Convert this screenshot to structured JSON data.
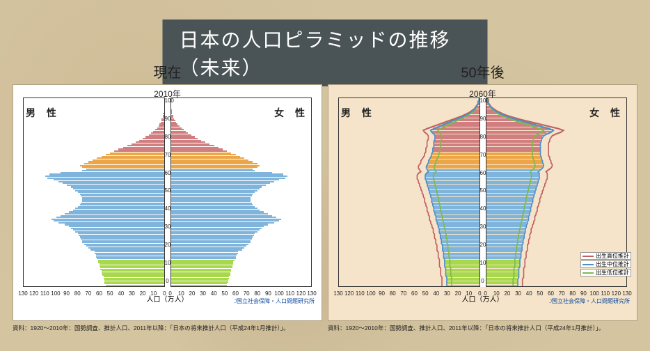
{
  "title": "日本の人口ピラミッドの推移（未来）",
  "background_color": "#d4c4a0",
  "title_bg": "#4a5355",
  "title_color": "#ffffff",
  "title_fontsize": 28,
  "panels": [
    {
      "key": "now",
      "heading": "現在",
      "year": "2010年",
      "plot_bg": "#ffffff",
      "gender_male": "男 性",
      "gender_female": "女 性",
      "xlabel": "人口（万人）",
      "logo_text": "国立社会保障・人口問題研究所",
      "footnote": "資料：1920～2010年：国勢調査、推計人口、2011年以降：「日本の将来推計人口（平成24年1月推計）」。"
    },
    {
      "key": "future",
      "heading": "50年後",
      "year": "2060年",
      "plot_bg": "#f5e4c9",
      "gender_male": "男 性",
      "gender_female": "女 性",
      "xlabel": "人口（万人）",
      "logo_text": "国立社会保障・人口問題研究所",
      "footnote": "資料：1920～2010年：国勢調査、推計人口、2011年以降：「日本の将来推計人口（平成24年1月推計）」。"
    }
  ],
  "y_axis": {
    "min": 0,
    "max": 105,
    "tick_step": 10
  },
  "x_axis": {
    "max": 130,
    "ticks": [
      130,
      120,
      110,
      100,
      90,
      80,
      70,
      60,
      50,
      40,
      30,
      20,
      10,
      0
    ]
  },
  "age_band_colors": {
    "youth": {
      "range": [
        0,
        14
      ],
      "fill": "linear-gradient(to top,#9dd140,#c9e97a)",
      "solid": "#a8d84b"
    },
    "working": {
      "range": [
        15,
        64
      ],
      "fill": "linear-gradient(to top,#6aa8d8,#b7d6ee)",
      "solid": "#7fb4dd"
    },
    "senior1": {
      "range": [
        65,
        74
      ],
      "fill": "linear-gradient(to top,#e89a3a,#f4c276)",
      "solid": "#eda647"
    },
    "senior2": {
      "range": [
        75,
        110
      ],
      "fill": "linear-gradient(to top,#c86b6d,#e9aeb1)",
      "solid": "#d17e80"
    }
  },
  "legend_variants": [
    {
      "label": "出生高位推計",
      "color": "#c06060"
    },
    {
      "label": "出生中位推計",
      "color": "#4f8fc9"
    },
    {
      "label": "出生低位推計",
      "color": "#7dbb4a"
    }
  ],
  "data_2010": {
    "male": [
      54,
      55,
      55,
      55,
      56,
      56,
      57,
      58,
      58,
      59,
      59,
      60,
      60,
      61,
      61,
      62,
      63,
      63,
      64,
      64,
      68,
      70,
      72,
      74,
      76,
      76,
      77,
      78,
      79,
      80,
      82,
      84,
      86,
      88,
      92,
      98,
      102,
      104,
      100,
      96,
      92,
      88,
      84,
      82,
      80,
      78,
      77,
      76,
      76,
      76,
      77,
      78,
      80,
      82,
      84,
      86,
      90,
      94,
      98,
      102,
      108,
      110,
      106,
      96,
      76,
      72,
      76,
      78,
      74,
      70,
      66,
      62,
      58,
      54,
      50,
      46,
      42,
      38,
      34,
      30,
      26,
      23,
      20,
      17,
      14,
      12,
      10,
      8,
      6,
      5,
      4,
      3,
      2,
      2,
      1,
      1,
      1,
      0,
      0,
      0,
      0,
      0,
      0,
      0,
      0,
      0
    ],
    "female": [
      52,
      52,
      53,
      53,
      54,
      54,
      55,
      55,
      56,
      56,
      57,
      57,
      58,
      58,
      59,
      60,
      60,
      61,
      62,
      62,
      66,
      68,
      70,
      72,
      74,
      74,
      75,
      76,
      77,
      78,
      80,
      82,
      84,
      86,
      90,
      96,
      100,
      102,
      98,
      94,
      90,
      86,
      82,
      80,
      78,
      76,
      75,
      74,
      74,
      74,
      75,
      76,
      78,
      80,
      82,
      84,
      88,
      92,
      96,
      100,
      106,
      108,
      104,
      94,
      78,
      76,
      80,
      82,
      80,
      76,
      72,
      68,
      64,
      60,
      56,
      52,
      48,
      44,
      40,
      36,
      32,
      28,
      25,
      22,
      19,
      16,
      14,
      12,
      10,
      8,
      6,
      5,
      4,
      3,
      2,
      2,
      1,
      1,
      1,
      0,
      0,
      0,
      0,
      0,
      0,
      0
    ]
  },
  "data_2060": {
    "male": [
      30,
      30,
      30,
      30,
      30,
      30,
      31,
      31,
      31,
      31,
      31,
      32,
      32,
      32,
      32,
      32,
      33,
      33,
      33,
      33,
      34,
      34,
      34,
      34,
      35,
      35,
      35,
      36,
      36,
      36,
      37,
      37,
      37,
      38,
      38,
      39,
      39,
      40,
      40,
      40,
      41,
      41,
      42,
      42,
      42,
      43,
      43,
      44,
      44,
      44,
      45,
      45,
      46,
      46,
      47,
      47,
      48,
      48,
      49,
      49,
      50,
      50,
      50,
      49,
      47,
      48,
      49,
      49,
      48,
      47,
      47,
      46,
      45,
      44,
      44,
      43,
      43,
      43,
      42,
      42,
      42,
      42,
      41,
      41,
      41,
      42,
      44,
      45,
      42,
      38,
      34,
      30,
      26,
      22,
      18,
      14,
      11,
      8,
      6,
      4,
      3,
      2,
      1,
      1,
      0,
      0
    ],
    "female": [
      29,
      29,
      29,
      29,
      29,
      30,
      30,
      30,
      30,
      30,
      30,
      31,
      31,
      31,
      31,
      31,
      32,
      32,
      32,
      32,
      33,
      33,
      33,
      33,
      34,
      34,
      34,
      35,
      35,
      35,
      36,
      36,
      36,
      37,
      37,
      38,
      38,
      39,
      39,
      39,
      40,
      40,
      41,
      41,
      41,
      42,
      42,
      43,
      43,
      43,
      44,
      44,
      45,
      45,
      46,
      46,
      47,
      47,
      48,
      48,
      49,
      49,
      49,
      49,
      48,
      50,
      52,
      53,
      53,
      52,
      52,
      51,
      51,
      50,
      50,
      50,
      50,
      50,
      50,
      50,
      50,
      51,
      51,
      52,
      53,
      56,
      60,
      62,
      58,
      52,
      46,
      40,
      34,
      28,
      23,
      18,
      14,
      11,
      8,
      6,
      4,
      3,
      2,
      1,
      1,
      0
    ]
  },
  "variant_offsets_2060": {
    "high": 1.15,
    "low": 0.85
  }
}
